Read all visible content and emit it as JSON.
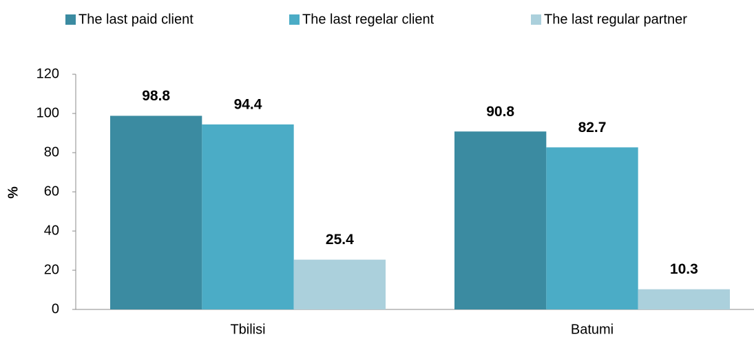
{
  "chart_data": {
    "type": "bar",
    "ylabel": "%",
    "categories": [
      "Tbilisi",
      "Batumi"
    ],
    "series": [
      {
        "name": "The last paid client",
        "color": "#3b8ba1",
        "values": [
          98.8,
          90.8
        ]
      },
      {
        "name": "The last regelar client",
        "color": "#4bacc6",
        "values": [
          94.4,
          82.7
        ]
      },
      {
        "name": "The last regular partner",
        "color": "#abd0dc",
        "values": [
          25.4,
          10.3
        ]
      }
    ],
    "ylim": [
      0,
      120
    ],
    "yticks": [
      0,
      20,
      40,
      60,
      80,
      100,
      120
    ],
    "grid": false,
    "legend": "top"
  }
}
